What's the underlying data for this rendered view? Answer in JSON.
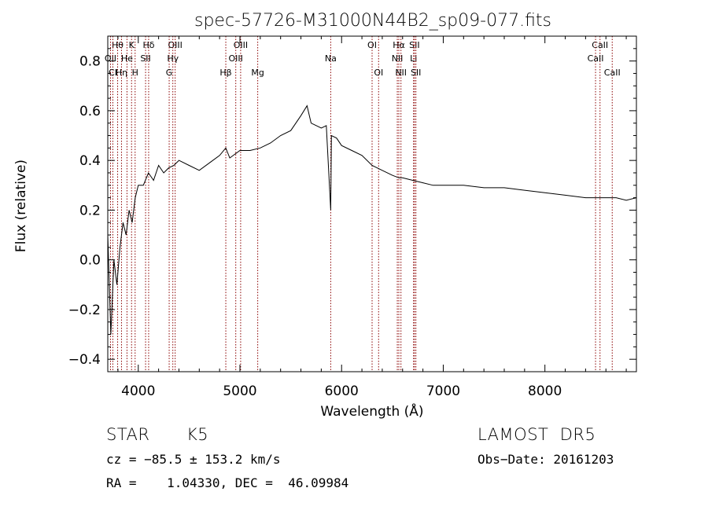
{
  "chart_data": {
    "type": "line",
    "title": "spec-57726-M31000N44B2_sp09-077.fits",
    "xlabel": "Wavelength (Å)",
    "ylabel": "Flux (relative)",
    "xlim": [
      3700,
      8900
    ],
    "ylim": [
      -0.45,
      0.9
    ],
    "xticks": [
      4000,
      5000,
      6000,
      7000,
      8000
    ],
    "yticks": [
      -0.4,
      -0.2,
      0.0,
      0.2,
      0.4,
      0.6,
      0.8
    ],
    "ytick_labels": [
      "−0.4",
      "−0.2",
      "0.0",
      "0.2",
      "0.4",
      "0.6",
      "0.8"
    ],
    "line_color": "#000000",
    "marker_color": "#8b0000",
    "spectrum": {
      "x": [
        3700,
        3730,
        3760,
        3790,
        3820,
        3850,
        3880,
        3910,
        3940,
        3970,
        4000,
        4050,
        4100,
        4150,
        4200,
        4250,
        4300,
        4350,
        4400,
        4500,
        4600,
        4700,
        4800,
        4861,
        4900,
        5000,
        5100,
        5200,
        5300,
        5400,
        5500,
        5600,
        5660,
        5700,
        5800,
        5850,
        5893,
        5900,
        5950,
        6000,
        6100,
        6200,
        6300,
        6400,
        6500,
        6563,
        6600,
        6700,
        6800,
        6900,
        7000,
        7200,
        7400,
        7600,
        7800,
        8000,
        8200,
        8400,
        8500,
        8600,
        8700,
        8800,
        8900
      ],
      "y": [
        0.1,
        -0.3,
        0.0,
        -0.1,
        0.05,
        0.15,
        0.1,
        0.2,
        0.15,
        0.25,
        0.3,
        0.3,
        0.35,
        0.32,
        0.38,
        0.35,
        0.37,
        0.38,
        0.4,
        0.38,
        0.36,
        0.39,
        0.42,
        0.45,
        0.41,
        0.44,
        0.44,
        0.45,
        0.47,
        0.5,
        0.52,
        0.58,
        0.62,
        0.55,
        0.53,
        0.54,
        0.2,
        0.5,
        0.49,
        0.46,
        0.44,
        0.42,
        0.38,
        0.36,
        0.34,
        0.33,
        0.33,
        0.32,
        0.31,
        0.3,
        0.3,
        0.3,
        0.29,
        0.29,
        0.28,
        0.27,
        0.26,
        0.25,
        0.25,
        0.25,
        0.25,
        0.24,
        0.25
      ]
    },
    "line_markers": [
      {
        "label": "Hθ",
        "x": 3797,
        "row": 0
      },
      {
        "label": "K",
        "x": 3934,
        "row": 0
      },
      {
        "label": "Hδ",
        "x": 4102,
        "row": 0
      },
      {
        "label": "OIII",
        "x": 4363,
        "row": 0
      },
      {
        "label": "OIII",
        "x": 5007,
        "row": 0
      },
      {
        "label": "OI",
        "x": 6300,
        "row": 0
      },
      {
        "label": "Hα",
        "x": 6563,
        "row": 0
      },
      {
        "label": "SII",
        "x": 6717,
        "row": 0
      },
      {
        "label": "CaII",
        "x": 8542,
        "row": 0
      },
      {
        "label": "OII",
        "x": 3727,
        "row": 1
      },
      {
        "label": "He",
        "x": 3889,
        "row": 1
      },
      {
        "label": "SII",
        "x": 4072,
        "row": 1
      },
      {
        "label": "Hγ",
        "x": 4340,
        "row": 1
      },
      {
        "label": "OIII",
        "x": 4959,
        "row": 1
      },
      {
        "label": "Na",
        "x": 5893,
        "row": 1
      },
      {
        "label": "NII",
        "x": 6548,
        "row": 1
      },
      {
        "label": "Li",
        "x": 6708,
        "row": 1
      },
      {
        "label": "CaII",
        "x": 8498,
        "row": 1
      },
      {
        "label": "CI",
        "x": 3750,
        "row": 2
      },
      {
        "label": "Hη",
        "x": 3835,
        "row": 2
      },
      {
        "label": "H",
        "x": 3969,
        "row": 2
      },
      {
        "label": "G",
        "x": 4304,
        "row": 2
      },
      {
        "label": "Hβ",
        "x": 4861,
        "row": 2
      },
      {
        "label": "Mg",
        "x": 5175,
        "row": 2
      },
      {
        "label": "OI",
        "x": 6364,
        "row": 2
      },
      {
        "label": "NII",
        "x": 6584,
        "row": 2
      },
      {
        "label": "SII",
        "x": 6731,
        "row": 2
      },
      {
        "label": "CaII",
        "x": 8662,
        "row": 2
      }
    ],
    "grid": false,
    "legend": "none"
  },
  "footer": {
    "object_class": "STAR",
    "subclass": "K5",
    "survey": "LAMOST  DR5",
    "cz": "cz = −85.5 ± 153.2 km/s",
    "obs_date": "Obs−Date: 20161203",
    "coords": "RA =    1.04330, DEC =  46.09984"
  }
}
